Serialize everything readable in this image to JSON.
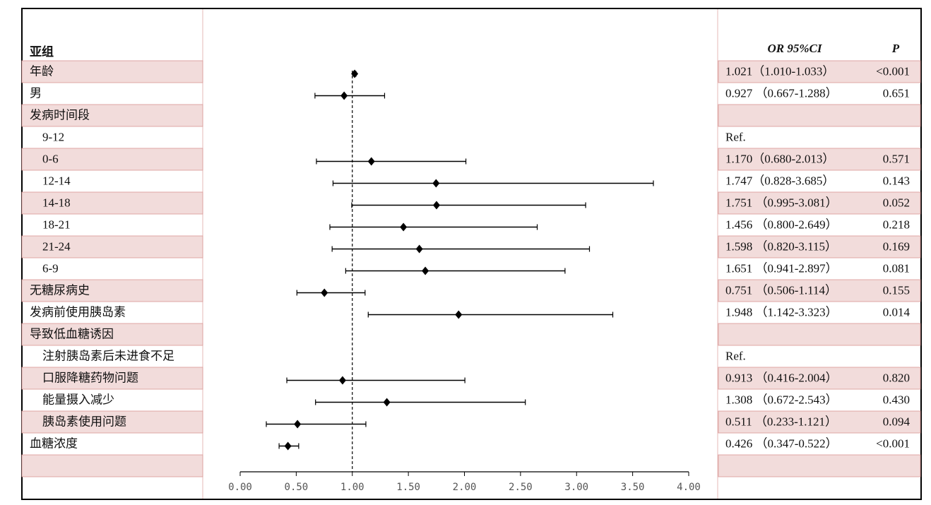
{
  "chart_data": {
    "type": "forest",
    "header": {
      "subgroup": "亚组",
      "or_ci": "OR 95%CI",
      "p": "P"
    },
    "categories": [
      "年龄",
      "男",
      "发病时间段",
      "9-12",
      "0-6",
      "12-14",
      "14-18",
      "18-21",
      "21-24",
      "6-9",
      "无糖尿病史",
      "发病前使用胰岛素",
      "导致低血糖诱因",
      "注射胰岛素后未进食不足",
      "口服降糖药物问题",
      "能量摄入减少",
      "胰岛素使用问题",
      "血糖浓度",
      null
    ],
    "values": [
      1.021,
      0.927,
      null,
      null,
      1.17,
      1.747,
      1.751,
      1.456,
      1.598,
      1.651,
      0.751,
      1.948,
      null,
      null,
      0.913,
      1.308,
      0.511,
      0.426,
      null
    ],
    "lower": [
      1.01,
      0.667,
      null,
      null,
      0.68,
      0.828,
      0.995,
      0.8,
      0.82,
      0.941,
      0.506,
      1.142,
      null,
      null,
      0.416,
      0.672,
      0.233,
      0.347,
      null
    ],
    "upper": [
      1.033,
      1.288,
      null,
      null,
      2.013,
      3.685,
      3.081,
      2.649,
      3.115,
      2.897,
      1.114,
      3.323,
      null,
      null,
      2.004,
      2.543,
      1.121,
      0.522,
      null
    ],
    "or_ci_labels": [
      "1.021（1.010-1.033）",
      "0.927 （0.667-1.288）",
      null,
      "Ref.",
      "1.170（0.680-2.013）",
      "1.747（0.828-3.685）",
      "1.751 （0.995-3.081）",
      "1.456 （0.800-2.649）",
      "1.598 （0.820-3.115）",
      "1.651 （0.941-2.897）",
      "0.751 （0.506-1.114）",
      "1.948 （1.142-3.323）",
      null,
      "Ref.",
      "0.913 （0.416-2.004）",
      "1.308 （0.672-2.543）",
      "0.511 （0.233-1.121）",
      "0.426 （0.347-0.522）",
      null
    ],
    "p_labels": [
      "<0.001",
      "0.651",
      null,
      null,
      "0.571",
      "0.143",
      "0.052",
      "0.218",
      "0.169",
      "0.081",
      "0.155",
      "0.014",
      null,
      null,
      "0.820",
      "0.430",
      "0.094",
      "<0.001",
      null
    ],
    "reference_line": 1,
    "xlim": [
      0,
      4
    ],
    "xticks": [
      {
        "value": 0,
        "label": "0.00"
      },
      {
        "value": 0.5,
        "label": "0.50"
      },
      {
        "value": 1,
        "label": "1.00"
      },
      {
        "value": 1.5,
        "label": "1.50"
      },
      {
        "value": 2,
        "label": "2.00"
      },
      {
        "value": 2.5,
        "label": "2.50"
      },
      {
        "value": 3,
        "label": "3.00"
      },
      {
        "value": 3.5,
        "label": "3.50"
      },
      {
        "value": 4,
        "label": "4.00"
      }
    ],
    "color": "#000000"
  }
}
